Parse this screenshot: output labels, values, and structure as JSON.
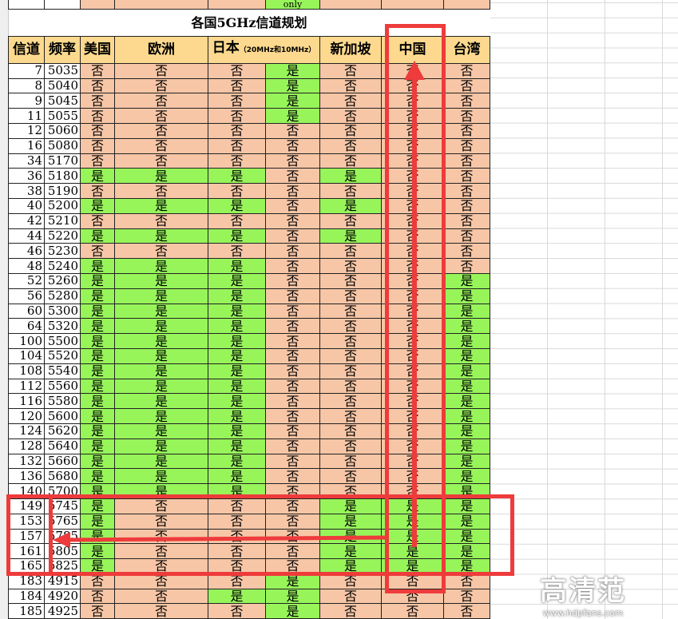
{
  "title": "各国5GHz信道规划",
  "top_partial_note": "only",
  "headers": {
    "channel": "信道",
    "freq": "频率",
    "us": "美国",
    "eu": "欧洲",
    "jp": "日本",
    "jp_sub": "（20MHz和10MHz）",
    "sg": "新加坡",
    "cn": "中国",
    "tw": "台湾"
  },
  "yes": "是",
  "no": "否",
  "colors": {
    "yes": "#97f55a",
    "no": "#f7c6a6",
    "header": "#fcd98e",
    "annotation": "#ee3b3b"
  },
  "rows": [
    [
      7,
      5035,
      "否",
      "否",
      "否",
      "是",
      "否",
      "否",
      "否"
    ],
    [
      8,
      5040,
      "否",
      "否",
      "否",
      "是",
      "否",
      "否",
      "否"
    ],
    [
      9,
      5045,
      "否",
      "否",
      "否",
      "是",
      "否",
      "否",
      "否"
    ],
    [
      11,
      5055,
      "否",
      "否",
      "否",
      "是",
      "否",
      "否",
      "否"
    ],
    [
      12,
      5060,
      "否",
      "否",
      "否",
      "否",
      "否",
      "否",
      "否"
    ],
    [
      16,
      5080,
      "否",
      "否",
      "否",
      "否",
      "否",
      "否",
      "否"
    ],
    [
      34,
      5170,
      "否",
      "否",
      "否",
      "否",
      "否",
      "否",
      "否"
    ],
    [
      36,
      5180,
      "是",
      "是",
      "是",
      "否",
      "是",
      "否",
      "否"
    ],
    [
      38,
      5190,
      "否",
      "否",
      "否",
      "否",
      "否",
      "否",
      "否"
    ],
    [
      40,
      5200,
      "是",
      "是",
      "是",
      "否",
      "是",
      "否",
      "否"
    ],
    [
      42,
      5210,
      "否",
      "否",
      "否",
      "否",
      "否",
      "否",
      "否"
    ],
    [
      44,
      5220,
      "是",
      "是",
      "是",
      "否",
      "是",
      "否",
      "否"
    ],
    [
      46,
      5230,
      "否",
      "否",
      "否",
      "否",
      "否",
      "否",
      "否"
    ],
    [
      48,
      5240,
      "是",
      "是",
      "是",
      "否",
      "否",
      "否",
      "否"
    ],
    [
      52,
      5260,
      "是",
      "是",
      "是",
      "否",
      "否",
      "否",
      "是"
    ],
    [
      56,
      5280,
      "是",
      "是",
      "是",
      "否",
      "否",
      "否",
      "是"
    ],
    [
      60,
      5300,
      "是",
      "是",
      "是",
      "否",
      "否",
      "否",
      "是"
    ],
    [
      64,
      5320,
      "是",
      "是",
      "是",
      "否",
      "否",
      "否",
      "是"
    ],
    [
      100,
      5500,
      "是",
      "是",
      "是",
      "否",
      "否",
      "否",
      "是"
    ],
    [
      104,
      5520,
      "是",
      "是",
      "是",
      "否",
      "否",
      "否",
      "是"
    ],
    [
      108,
      5540,
      "是",
      "是",
      "是",
      "否",
      "否",
      "否",
      "是"
    ],
    [
      112,
      5560,
      "是",
      "是",
      "是",
      "否",
      "否",
      "否",
      "是"
    ],
    [
      116,
      5580,
      "是",
      "是",
      "是",
      "否",
      "否",
      "否",
      "是"
    ],
    [
      120,
      5600,
      "是",
      "是",
      "是",
      "否",
      "否",
      "否",
      "是"
    ],
    [
      124,
      5620,
      "是",
      "是",
      "是",
      "否",
      "否",
      "否",
      "是"
    ],
    [
      128,
      5640,
      "是",
      "是",
      "是",
      "否",
      "否",
      "否",
      "是"
    ],
    [
      132,
      5660,
      "是",
      "是",
      "是",
      "否",
      "否",
      "否",
      "是"
    ],
    [
      136,
      5680,
      "是",
      "是",
      "是",
      "否",
      "否",
      "否",
      "是"
    ],
    [
      140,
      5700,
      "是",
      "是",
      "是",
      "否",
      "否",
      "否",
      "是"
    ],
    [
      149,
      5745,
      "是",
      "否",
      "否",
      "否",
      "是",
      "是",
      "是"
    ],
    [
      153,
      5765,
      "是",
      "否",
      "否",
      "否",
      "是",
      "是",
      "是"
    ],
    [
      157,
      5785,
      "是",
      "否",
      "否",
      "否",
      "是",
      "是",
      "是"
    ],
    [
      161,
      5805,
      "是",
      "否",
      "否",
      "否",
      "是",
      "是",
      "是"
    ],
    [
      165,
      5825,
      "是",
      "否",
      "否",
      "否",
      "是",
      "是",
      "是"
    ],
    [
      183,
      4915,
      "否",
      "否",
      "否",
      "是",
      "否",
      "否",
      "否"
    ],
    [
      184,
      4920,
      "否",
      "否",
      "是",
      "是",
      "否",
      "否",
      "否"
    ],
    [
      185,
      4925,
      "否",
      "否",
      "否",
      "是",
      "否",
      "否",
      "否"
    ]
  ],
  "watermark": {
    "logo": "高清范",
    "url": "www.hdpfans.com"
  }
}
